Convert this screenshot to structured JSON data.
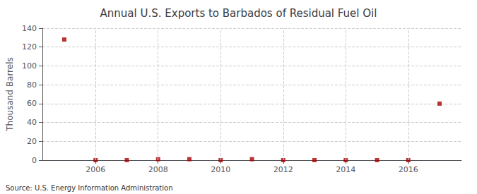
{
  "chart_data": {
    "type": "scatter",
    "title": "Annual U.S. Exports to Barbados of Residual Fuel Oil",
    "ylabel": "Thousand Barrels",
    "annotations": [
      "Source: U.S. Energy Information Administration"
    ],
    "x": [
      2005,
      2006,
      2007,
      2008,
      2009,
      2010,
      2011,
      2012,
      2013,
      2014,
      2015,
      2016,
      2017
    ],
    "values": [
      128,
      0,
      0,
      1,
      1,
      0,
      1,
      0,
      0,
      0,
      0,
      0,
      60
    ],
    "color": "#aa0000",
    "marker": "square",
    "xlim": [
      2004.3,
      2017.7
    ],
    "xticks": [
      2006,
      2008,
      2010,
      2012,
      2014,
      2016
    ],
    "ylim": [
      0,
      140
    ],
    "yticks": [
      0,
      20,
      40,
      60,
      80,
      100,
      120,
      140
    ],
    "grid": true
  }
}
